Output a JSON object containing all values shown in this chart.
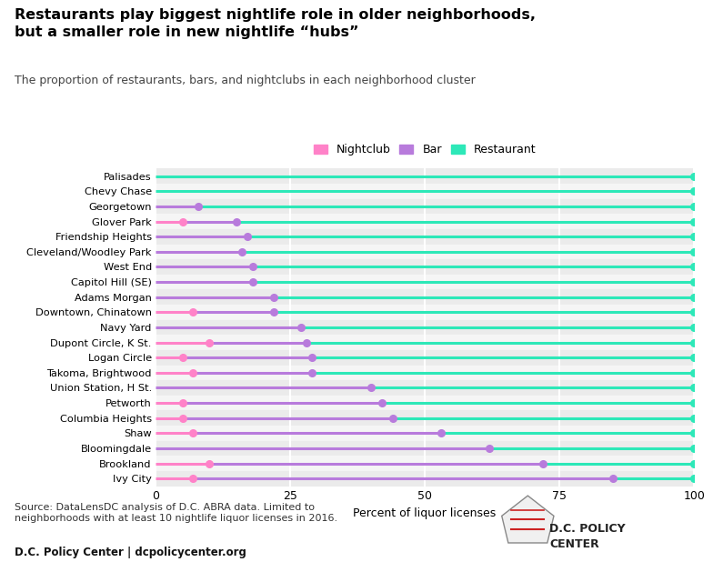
{
  "title": "Restaurants play biggest nightlife role in older neighborhoods,\nbut a smaller role in new nightlife “hubs”",
  "subtitle": "The proportion of restaurants, bars, and nightclubs in each neighborhood cluster",
  "xlabel": "Percent of liquor licenses",
  "neighborhoods": [
    "Palisades",
    "Chevy Chase",
    "Georgetown",
    "Glover Park",
    "Friendship Heights",
    "Cleveland/Woodley Park",
    "West End",
    "Capitol Hill (SE)",
    "Adams Morgan",
    "Downtown, Chinatown",
    "Navy Yard",
    "Dupont Circle, K St.",
    "Logan Circle",
    "Takoma, Brightwood",
    "Union Station, H St.",
    "Petworth",
    "Columbia Heights",
    "Shaw",
    "Bloomingdale",
    "Brookland",
    "Ivy City"
  ],
  "nightclub": [
    0,
    0,
    0,
    5,
    0,
    0,
    0,
    0,
    0,
    7,
    0,
    10,
    5,
    7,
    0,
    5,
    5,
    7,
    0,
    10,
    7
  ],
  "bar": [
    0,
    0,
    8,
    15,
    17,
    16,
    18,
    18,
    22,
    22,
    27,
    28,
    29,
    29,
    40,
    42,
    44,
    53,
    62,
    72,
    85
  ],
  "nightclub_color": "#ff82c8",
  "bar_color": "#b87bdc",
  "restaurant_color": "#2de8b8",
  "bg_color_even": "#ebebeb",
  "bg_color_odd": "#f5f5f5",
  "source_text": "Source: DataLensDC analysis of D.C. ABRA data. Limited to\nneighborhoods with at least 10 nightlife liquor licenses in 2016.",
  "footer_bold": "D.C. Policy Center | dcpolicycenter.org"
}
